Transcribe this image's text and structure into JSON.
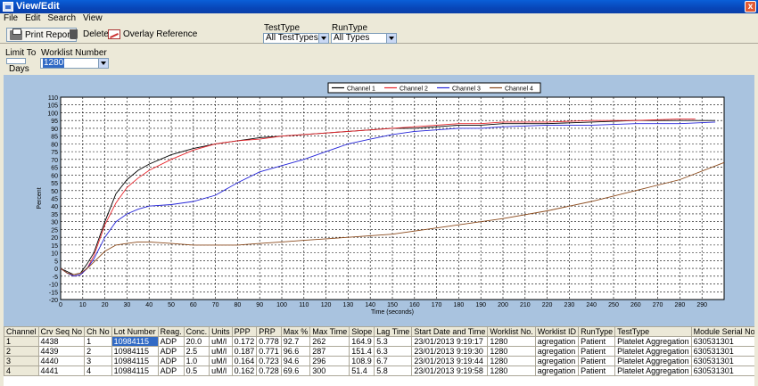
{
  "window": {
    "title": "View/Edit",
    "close_label": "x"
  },
  "menu": [
    "File",
    "Edit",
    "Search",
    "View"
  ],
  "toolbar": {
    "print_label": "Print Report",
    "delete_label": "Delete",
    "overlay_label": "Overlay Reference"
  },
  "filters": {
    "testtype_label": "TestType",
    "testtype_value": "All TestTypes",
    "runtype_label": "RunType",
    "runtype_value": "All Types",
    "limit_label": "Limit To",
    "days_label": "Days",
    "worklist_label": "Worklist Number",
    "worklist_value": "1280"
  },
  "colors": {
    "channel1": "#000000",
    "channel2": "#e8262c",
    "channel3": "#2424d8",
    "channel4": "#8b4a1c",
    "plot_bg": "#ffffff",
    "panel_bg": "#a9c3df"
  },
  "chart_data": {
    "type": "line",
    "title": "",
    "xlabel": "Time (seconds)",
    "ylabel": "Percent",
    "xlim": [
      0,
      300
    ],
    "ylim": [
      -20,
      110
    ],
    "xticks": [
      0,
      10,
      20,
      30,
      40,
      50,
      60,
      70,
      80,
      90,
      100,
      110,
      120,
      130,
      140,
      150,
      160,
      170,
      180,
      190,
      200,
      210,
      220,
      230,
      240,
      250,
      260,
      270,
      280,
      290
    ],
    "yticks": [
      -20,
      -15,
      -10,
      -5,
      0,
      5,
      10,
      15,
      20,
      25,
      30,
      35,
      40,
      45,
      50,
      55,
      60,
      65,
      70,
      75,
      80,
      85,
      90,
      95,
      100,
      105,
      110
    ],
    "grid": true,
    "legend_position": "top-right",
    "series": [
      {
        "name": "Channel 1",
        "x": [
          0,
          3,
          6,
          9,
          12,
          15,
          20,
          25,
          30,
          35,
          40,
          50,
          60,
          70,
          80,
          90,
          100,
          110,
          120,
          130,
          140,
          150,
          160,
          170,
          180,
          190,
          200,
          220,
          240,
          260,
          280,
          296
        ],
        "y": [
          0,
          -2,
          -4,
          -3,
          3,
          10,
          30,
          48,
          57,
          63,
          67,
          73,
          77,
          80,
          82,
          84,
          85,
          86,
          87,
          88,
          89,
          90,
          90,
          91,
          92,
          92,
          93,
          93,
          94,
          95,
          95,
          95
        ]
      },
      {
        "name": "Channel 2",
        "x": [
          0,
          3,
          6,
          9,
          12,
          15,
          20,
          25,
          30,
          35,
          40,
          50,
          60,
          70,
          80,
          90,
          100,
          110,
          120,
          130,
          140,
          150,
          160,
          170,
          180,
          190,
          200,
          220,
          240,
          260,
          280,
          287
        ],
        "y": [
          0,
          -3,
          -5,
          -4,
          0,
          8,
          28,
          42,
          52,
          58,
          63,
          70,
          76,
          80,
          82,
          83,
          85,
          86,
          87,
          88,
          89,
          90,
          91,
          92,
          93,
          93,
          94,
          94,
          95,
          95,
          96,
          96
        ]
      },
      {
        "name": "Channel 3",
        "x": [
          0,
          3,
          6,
          9,
          12,
          15,
          20,
          25,
          30,
          35,
          40,
          50,
          60,
          70,
          80,
          90,
          100,
          110,
          120,
          130,
          140,
          150,
          160,
          170,
          180,
          190,
          200,
          220,
          240,
          260,
          280,
          296
        ],
        "y": [
          0,
          -3,
          -5,
          -4,
          0,
          6,
          20,
          30,
          35,
          38,
          40,
          41,
          43,
          47,
          55,
          62,
          66,
          70,
          75,
          80,
          83,
          86,
          88,
          89,
          90,
          90,
          91,
          92,
          92,
          93,
          93,
          94
        ]
      },
      {
        "name": "Channel 4",
        "x": [
          0,
          3,
          6,
          9,
          12,
          15,
          20,
          25,
          30,
          35,
          40,
          50,
          60,
          70,
          80,
          90,
          100,
          110,
          120,
          130,
          140,
          150,
          160,
          170,
          180,
          190,
          200,
          220,
          240,
          260,
          280,
          300
        ],
        "y": [
          0,
          -3,
          -4,
          -3,
          0,
          4,
          11,
          15,
          16,
          17,
          17,
          16,
          15,
          15,
          15,
          16,
          17,
          18,
          19,
          20,
          21,
          22,
          24,
          26,
          28,
          30,
          32,
          37,
          43,
          50,
          57,
          68
        ]
      }
    ]
  },
  "table": {
    "headers": [
      "Channel",
      "Crv Seq No",
      "Ch No",
      "Lot Number",
      "Reag.",
      "Conc.",
      "Units",
      "PPP",
      "PRP",
      "Max %",
      "Max Time",
      "Slope",
      "Lag Time",
      "Start Date and Time",
      "Worklist No.",
      "Worklist ID",
      "RunType",
      "TestType",
      "Module Serial No."
    ],
    "rows": [
      [
        "1",
        "4438",
        "1",
        "10984115",
        "ADP",
        "20.0",
        "uM/l",
        "0.172",
        "0.778",
        "92.7",
        "262",
        "164.9",
        "5.3",
        "23/01/2013 9:19:17",
        "1280",
        "agregation",
        "Patient",
        "Platelet Aggregation",
        "630531301"
      ],
      [
        "2",
        "4439",
        "2",
        "10984115",
        "ADP",
        "2.5",
        "uM/l",
        "0.187",
        "0.771",
        "96.6",
        "287",
        "151.4",
        "6.3",
        "23/01/2013 9:19:30",
        "1280",
        "agregation",
        "Patient",
        "Platelet Aggregation",
        "630531301"
      ],
      [
        "3",
        "4440",
        "3",
        "10984115",
        "ADP",
        "1.0",
        "uM/l",
        "0.164",
        "0.723",
        "94.6",
        "296",
        "108.9",
        "6.7",
        "23/01/2013 9:19:44",
        "1280",
        "agregation",
        "Patient",
        "Platelet Aggregation",
        "630531301"
      ],
      [
        "4",
        "4441",
        "4",
        "10984115",
        "ADP",
        "0.5",
        "uM/l",
        "0.162",
        "0.728",
        "69.6",
        "300",
        "51.4",
        "5.8",
        "23/01/2013 9:19:58",
        "1280",
        "agregation",
        "Patient",
        "Platelet Aggregation",
        "630531301"
      ]
    ]
  }
}
